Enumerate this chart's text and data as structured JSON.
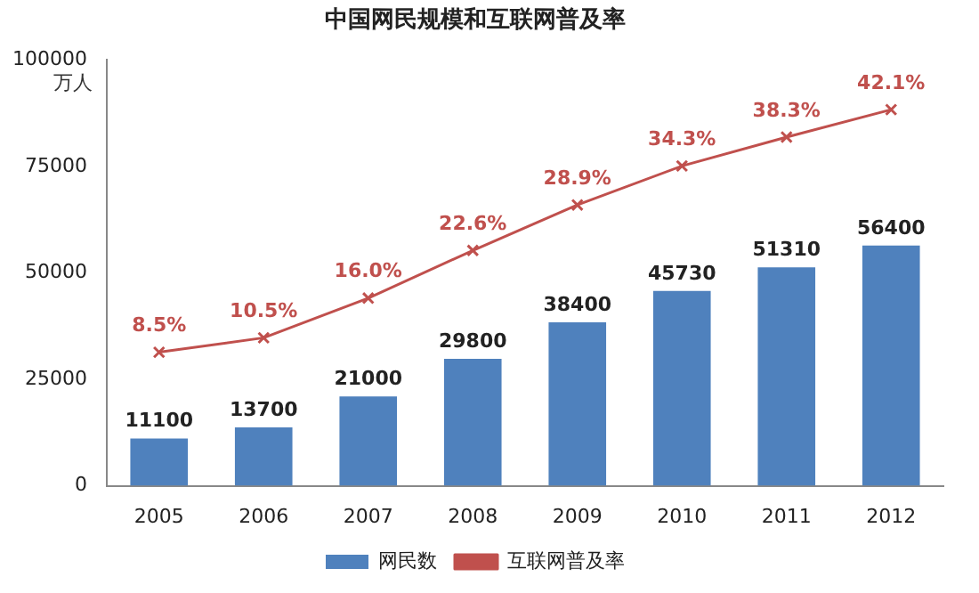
{
  "chart_data": {
    "type": "bar",
    "title": "中国网民规模和互联网普及率",
    "ylabel": "万人",
    "categories": [
      "2005",
      "2006",
      "2007",
      "2008",
      "2009",
      "2010",
      "2011",
      "2012"
    ],
    "series": [
      {
        "name": "网民数",
        "color": "#4f81bd",
        "values": [
          11100,
          13700,
          21000,
          29800,
          38400,
          45730,
          51310,
          56400
        ],
        "value_labels": [
          "11100",
          "13700",
          "21000",
          "29800",
          "38400",
          "45730",
          "51310",
          "56400"
        ]
      },
      {
        "name": "互联网普及率",
        "type": "line",
        "axis": "y2",
        "color": "#c0504d",
        "marker": "cross",
        "values": [
          8.5,
          10.5,
          16.0,
          22.6,
          28.9,
          34.3,
          38.3,
          42.1
        ],
        "value_labels": [
          "8.5%",
          "10.5%",
          "16.0%",
          "22.6%",
          "28.9%",
          "34.3%",
          "38.3%",
          "42.1%"
        ]
      }
    ],
    "ylim": [
      0,
      100000
    ],
    "yticks": [
      0,
      25000,
      50000,
      75000,
      100000
    ],
    "y2lim": [
      -10,
      49
    ],
    "grid": false,
    "legend": "bottom"
  }
}
